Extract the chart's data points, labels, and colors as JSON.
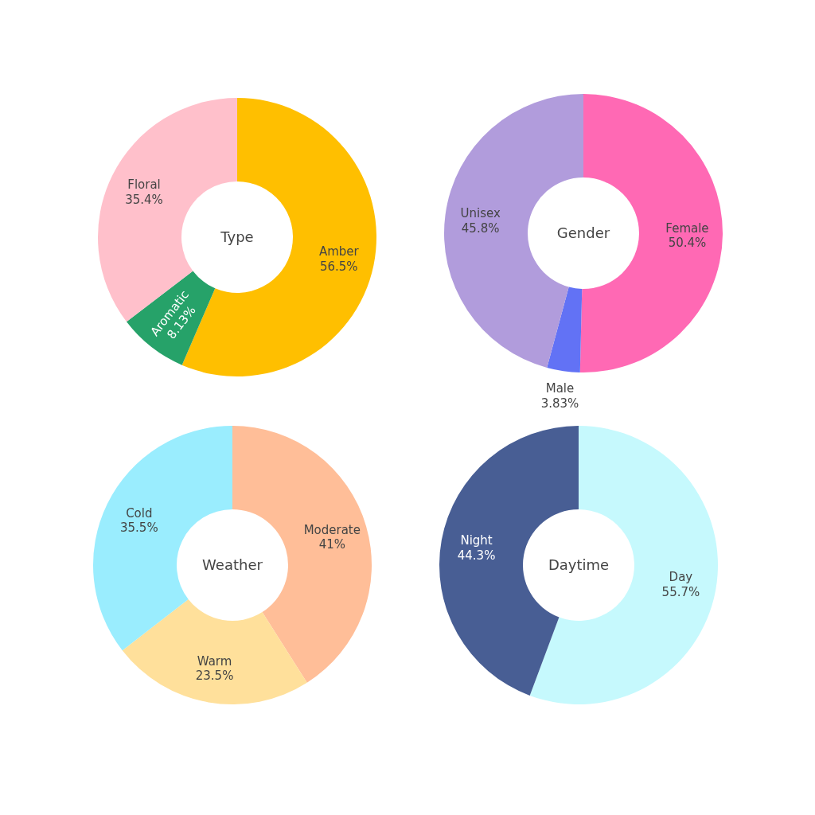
{
  "chart_data": [
    {
      "type": "donut",
      "title": "Type",
      "categories": [
        "Amber",
        "Aromatic",
        "Floral"
      ],
      "values": [
        56.5,
        8.13,
        35.4
      ],
      "colors": [
        "#ffbf00",
        "#26a269",
        "#ffc0cb"
      ],
      "value_labels": [
        "56.5%",
        "8.13%",
        "35.4%"
      ]
    },
    {
      "type": "donut",
      "title": "Gender",
      "categories": [
        "Female",
        "Male",
        "Unisex"
      ],
      "values": [
        50.4,
        3.83,
        45.8
      ],
      "colors": [
        "#ff69b4",
        "#6272f5",
        "#b19cdc"
      ],
      "value_labels": [
        "50.4%",
        "3.83%",
        "45.8%"
      ]
    },
    {
      "type": "donut",
      "title": "Weather",
      "categories": [
        "Moderate",
        "Warm",
        "Cold"
      ],
      "values": [
        41,
        23.5,
        35.5
      ],
      "colors": [
        "#ffbe98",
        "#ffe09b",
        "#9aedfe"
      ],
      "value_labels": [
        "41%",
        "23.5%",
        "35.5%"
      ]
    },
    {
      "type": "donut",
      "title": "Daytime",
      "categories": [
        "Day",
        "Night"
      ],
      "values": [
        55.7,
        44.3
      ],
      "colors": [
        "#c6f9fd",
        "#485e94"
      ],
      "value_labels": [
        "55.7%",
        "44.3%"
      ]
    }
  ]
}
